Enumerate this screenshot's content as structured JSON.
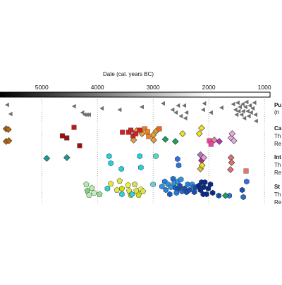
{
  "chart_data": {
    "type": "scatter",
    "xlabel": "Date (cal. years BC)",
    "x_ticks": [
      5000,
      4000,
      3000,
      2000,
      1000
    ],
    "xlim": [
      5750,
      900
    ],
    "x_reversed": true,
    "grid": "vertical dotted lines at ticks",
    "time_bar": "gradient bar from black (older) to white (younger)",
    "rows": [
      {
        "label_lines": [
          "Pu",
          "(n"
        ]
      },
      {
        "label_lines": [
          "Ca",
          "Th",
          "Re"
        ]
      },
      {
        "label_lines": [
          "Int",
          "Th",
          "Re"
        ]
      },
      {
        "label_lines": [
          "St",
          "Th",
          "Re"
        ]
      }
    ],
    "series": [
      {
        "row": 0,
        "marker": "triangle-left",
        "color": "#6e6e6e",
        "points": [
          [
            5620,
            149
          ],
          [
            5560,
            162
          ],
          [
            4420,
            151
          ],
          [
            4270,
            160
          ],
          [
            4230,
            163
          ],
          [
            4190,
            163
          ],
          [
            4150,
            163
          ],
          [
            3920,
            154
          ],
          [
            3600,
            156
          ],
          [
            3200,
            152
          ],
          [
            2820,
            147
          ],
          [
            2650,
            156
          ],
          [
            2590,
            160
          ],
          [
            2550,
            150
          ],
          [
            2500,
            165
          ],
          [
            2440,
            150
          ],
          [
            2420,
            168
          ],
          [
            2400,
            160
          ],
          [
            2100,
            156
          ],
          [
            2080,
            147
          ],
          [
            1960,
            160
          ],
          [
            1770,
            153
          ],
          [
            1560,
            148
          ],
          [
            1520,
            156
          ],
          [
            1500,
            163
          ],
          [
            1480,
            146
          ],
          [
            1460,
            158
          ],
          [
            1440,
            152
          ],
          [
            1410,
            163
          ],
          [
            1390,
            148
          ],
          [
            1380,
            158
          ],
          [
            1360,
            168
          ],
          [
            1340,
            152
          ],
          [
            1320,
            145
          ],
          [
            1300,
            158
          ],
          [
            1280,
            165
          ],
          [
            1260,
            150
          ],
          [
            1240,
            160
          ],
          [
            1210,
            154
          ],
          [
            1180,
            146
          ],
          [
            1160,
            163
          ],
          [
            1150,
            172
          ]
        ]
      },
      {
        "row": 1,
        "marker": "diamond",
        "points": [
          [
            5640,
            183,
            "#b86410"
          ],
          [
            5600,
            184,
            "#b86410"
          ],
          [
            5640,
            201,
            "#b86410"
          ],
          [
            5590,
            200,
            "#b86410"
          ],
          [
            3300,
            186,
            "#e8a030"
          ],
          [
            3200,
            190,
            "#e8a030"
          ],
          [
            3000,
            192,
            "#e8a030"
          ],
          [
            2940,
            186,
            "#e8a030"
          ],
          [
            2990,
            199,
            "#e8a030"
          ],
          [
            3350,
            199,
            "#e8a030"
          ],
          [
            2600,
            201,
            "#1aa060"
          ],
          [
            2780,
            198,
            "#1aa060"
          ],
          [
            2470,
            190,
            "#f0e020"
          ],
          [
            2170,
            190,
            "#f0e020"
          ],
          [
            2130,
            182,
            "#f0e020"
          ],
          [
            1900,
            199,
            "#f080a0"
          ],
          [
            1810,
            201,
            "#c030c0"
          ],
          [
            1600,
            196,
            "#e8a8e0"
          ],
          [
            1550,
            200,
            "#e8a8e0"
          ],
          [
            1580,
            190,
            "#e8a8e0"
          ]
        ]
      },
      {
        "row": 1,
        "marker": "square",
        "points": [
          [
            4420,
            181,
            "#c01818"
          ],
          [
            4550,
            196,
            "#a01010"
          ],
          [
            4630,
            193,
            "#a01010"
          ],
          [
            4320,
            207,
            "#a01010"
          ],
          [
            3550,
            188,
            "#d02020"
          ],
          [
            3440,
            188,
            "#d02020"
          ],
          [
            3400,
            185,
            "#d02020"
          ],
          [
            3360,
            193,
            "#d02020"
          ],
          [
            3310,
            190,
            "#d02020"
          ],
          [
            3240,
            185,
            "#d02020"
          ],
          [
            3150,
            183,
            "#f08020"
          ],
          [
            3100,
            187,
            "#f08020"
          ],
          [
            3080,
            194,
            "#f08020"
          ],
          [
            2890,
            183,
            "#f06020"
          ],
          [
            1990,
            200,
            "#f040a0"
          ],
          [
            1960,
            205,
            "#f040a0"
          ]
        ]
      },
      {
        "row": 2,
        "marker": "diamond",
        "points": [
          [
            4910,
            225,
            "#189a9a"
          ],
          [
            4550,
            224,
            "#189a9a"
          ],
          [
            2150,
            220,
            "#c070c0"
          ],
          [
            2130,
            228,
            "#b03080"
          ],
          [
            1600,
            224,
            "#e07070"
          ],
          [
            1590,
            231,
            "#e07070"
          ],
          [
            1610,
            241,
            "#e07070"
          ],
          [
            2150,
            240,
            "#e0c040"
          ],
          [
            2120,
            235,
            "#f0e020"
          ],
          [
            2090,
            224,
            "#e0a0e0"
          ]
        ]
      },
      {
        "row": 2,
        "marker": "hexagon",
        "points": [
          [
            3790,
            222,
            "#20d0e0"
          ],
          [
            3760,
            232,
            "#20d0e0"
          ],
          [
            3570,
            240,
            "#20d0e0"
          ],
          [
            3240,
            222,
            "#20d0e0"
          ],
          [
            3220,
            238,
            "#20d0e0"
          ],
          [
            2950,
            222,
            "#50e0c0"
          ],
          [
            2560,
            226,
            "#3070e0"
          ],
          [
            2540,
            235,
            "#3070e0"
          ]
        ]
      },
      {
        "row": 2,
        "marker": "square",
        "points": [
          [
            1330,
            243,
            "#f07060"
          ]
        ]
      },
      {
        "row": 3,
        "marker": "pentagon",
        "points": [
          [
            4200,
            262,
            "#b0f0a0"
          ],
          [
            4180,
            271,
            "#80d080"
          ],
          [
            4150,
            277,
            "#b0f0a0"
          ],
          [
            4100,
            267,
            "#b0f0a0"
          ],
          [
            4060,
            274,
            "#c0f0c0"
          ],
          [
            3960,
            276,
            "#90e090"
          ],
          [
            3760,
            261,
            "#e0e840"
          ],
          [
            3650,
            270,
            "#e0e840"
          ],
          [
            3600,
            257,
            "#e0e840"
          ],
          [
            3560,
            268,
            "#d0e000"
          ],
          [
            3450,
            263,
            "#f0f040"
          ],
          [
            3430,
            271,
            "#e0e840"
          ],
          [
            3400,
            277,
            "#d0e000"
          ],
          [
            3330,
            262,
            "#d0e060"
          ],
          [
            3300,
            271,
            "#e0e840"
          ],
          [
            3260,
            277,
            "#d0e000"
          ],
          [
            3220,
            269,
            "#f0f060"
          ],
          [
            3180,
            272,
            "#e0e840"
          ]
        ]
      },
      {
        "row": 3,
        "marker": "hexagon",
        "points": [
          [
            3820,
            268,
            "#30d0d0"
          ],
          [
            3560,
            276,
            "#30d0d0"
          ],
          [
            3380,
            276,
            "#30d0d0"
          ],
          [
            3000,
            262,
            "#60d0e0"
          ],
          [
            2840,
            265,
            "#3090e0"
          ],
          [
            2790,
            258,
            "#2080e0"
          ],
          [
            2770,
            270,
            "#2080e0"
          ],
          [
            2730,
            262,
            "#3090e0"
          ],
          [
            2700,
            276,
            "#1060c0"
          ],
          [
            2680,
            266,
            "#3090e0"
          ],
          [
            2640,
            254,
            "#2070d0"
          ],
          [
            2620,
            260,
            "#3090e0"
          ],
          [
            2600,
            267,
            "#1060c0"
          ],
          [
            2580,
            274,
            "#2080e0"
          ],
          [
            2560,
            258,
            "#3090e0"
          ],
          [
            2540,
            268,
            "#1a50b0"
          ],
          [
            2520,
            264,
            "#1a50b0"
          ],
          [
            2500,
            255,
            "#3090e0"
          ],
          [
            2480,
            272,
            "#2070d0"
          ],
          [
            2440,
            268,
            "#1a50b0"
          ],
          [
            2400,
            273,
            "#1a50b0"
          ],
          [
            2380,
            262,
            "#2080e0"
          ],
          [
            2350,
            270,
            "#1a50b0"
          ],
          [
            2300,
            262,
            "#3090e0"
          ],
          [
            2280,
            266,
            "#2070d0"
          ],
          [
            2260,
            273,
            "#1a50b0"
          ],
          [
            2230,
            266,
            "#1050b0"
          ],
          [
            2180,
            264,
            "#0a2a8a"
          ],
          [
            2150,
            270,
            "#0a2a8a"
          ],
          [
            2130,
            259,
            "#0a2a8a"
          ],
          [
            2100,
            276,
            "#0a2a8a"
          ],
          [
            2090,
            266,
            "#0a2a8a"
          ],
          [
            2070,
            259,
            "#0a2a8a"
          ],
          [
            2040,
            276,
            "#0a2a8a"
          ],
          [
            2010,
            268,
            "#0a2a8a"
          ],
          [
            1970,
            262,
            "#0a2a8a"
          ],
          [
            1930,
            274,
            "#0a2a8a"
          ],
          [
            1820,
            278,
            "#1050b0"
          ],
          [
            1630,
            278,
            "#3070e0"
          ],
          [
            1400,
            270,
            "#1a50b0"
          ],
          [
            1380,
            280,
            "#2070d0"
          ],
          [
            1320,
            258,
            "#3070e0"
          ]
        ]
      },
      {
        "row": 3,
        "marker": "diamond",
        "points": [
          [
            1700,
            278,
            "#1aa060"
          ]
        ]
      }
    ]
  }
}
